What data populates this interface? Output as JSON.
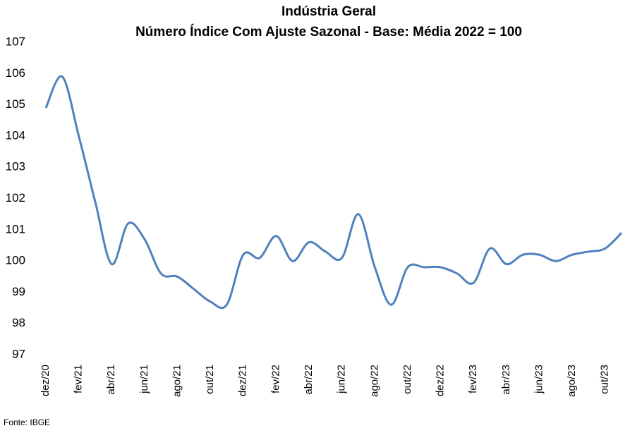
{
  "chart_data": {
    "type": "line",
    "title": "Indústria Geral",
    "subtitle": "Número Índice Com Ajuste Sazonal - Base: Média 2022 = 100",
    "source": "Fonte: IBGE",
    "categories": [
      "dez/20",
      null,
      "fev/21",
      null,
      "abr/21",
      null,
      "jun/21",
      null,
      "ago/21",
      null,
      "out/21",
      null,
      "dez/21",
      null,
      "fev/22",
      null,
      "abr/22",
      null,
      "jun/22",
      null,
      "ago/22",
      null,
      "out/22",
      null,
      "dez/22",
      null,
      "fev/23",
      null,
      "abr/23",
      null,
      "jun/23",
      null,
      "ago/23",
      null,
      "out/23",
      null
    ],
    "series": [
      {
        "name": "Indústria Geral",
        "color": "#4f81bd",
        "values": [
          104.9,
          105.9,
          104.0,
          101.9,
          99.9,
          101.2,
          100.7,
          99.6,
          99.5,
          99.1,
          98.7,
          98.6,
          100.2,
          100.1,
          100.8,
          100.0,
          100.6,
          100.3,
          100.1,
          101.5,
          99.8,
          98.6,
          99.8,
          99.8,
          99.8,
          99.6,
          99.3,
          100.4,
          99.9,
          100.2,
          100.2,
          100.0,
          100.2,
          100.3,
          100.4,
          100.9
        ]
      }
    ],
    "ylim": [
      97,
      107
    ],
    "yticks": [
      97,
      98,
      99,
      100,
      101,
      102,
      103,
      104,
      105,
      106,
      107
    ],
    "grid": false
  }
}
